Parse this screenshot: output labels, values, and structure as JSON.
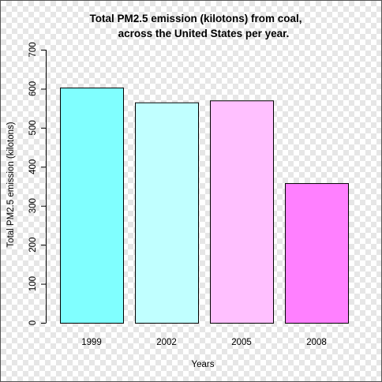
{
  "chart_data": {
    "type": "bar",
    "title_lines": [
      "Total PM2.5 emission (kilotons) from coal,",
      "across the United States per year."
    ],
    "xlabel": "Years",
    "ylabel": "Total PM2.5 emission (kilotons)",
    "categories": [
      "1999",
      "2002",
      "2005",
      "2008"
    ],
    "values": [
      603,
      565,
      570,
      358
    ],
    "bar_colors": [
      "#80ffff",
      "#c0ffff",
      "#ffc0ff",
      "#ff80ff"
    ],
    "ylim": [
      0,
      700
    ],
    "yticks": [
      0,
      100,
      200,
      300,
      400,
      500,
      600,
      700
    ],
    "grid": false,
    "legend": "none"
  }
}
